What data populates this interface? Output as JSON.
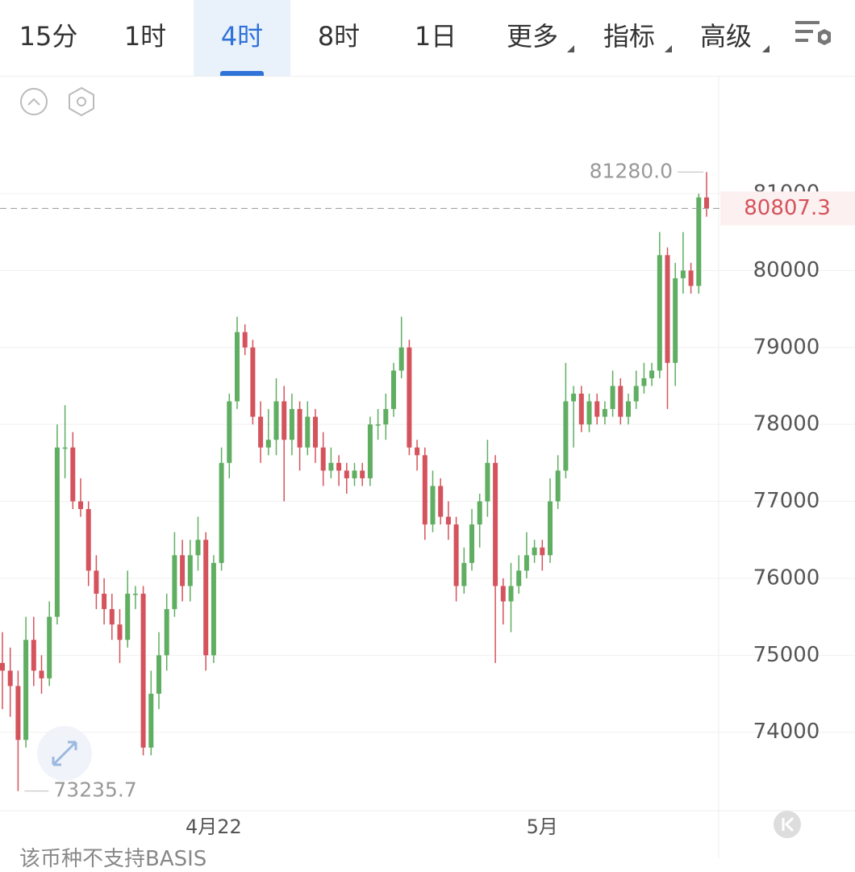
{
  "tabs": [
    "15分",
    "1时",
    "4时",
    "8时",
    "1日",
    "更多",
    "指标",
    "高级"
  ],
  "chart_data": {
    "type": "candlestick",
    "categories": [
      null,
      null,
      null,
      null,
      null,
      null,
      null,
      null,
      null,
      null,
      null,
      null,
      null,
      null,
      null,
      null,
      null,
      null,
      null,
      null,
      null,
      null,
      null,
      null,
      null,
      null,
      null,
      "4月22",
      null,
      null,
      null,
      null,
      null,
      null,
      null,
      null,
      null,
      null,
      null,
      null,
      null,
      null,
      null,
      null,
      null,
      null,
      null,
      null,
      null,
      null,
      null,
      null,
      null,
      null,
      null,
      null,
      null,
      null,
      null,
      null,
      null,
      null,
      null,
      null,
      null,
      null,
      null,
      null,
      null,
      "5月",
      null,
      null,
      null,
      null,
      null,
      null,
      null,
      null,
      null,
      null,
      null,
      null,
      null,
      null,
      null,
      null,
      null,
      null,
      null,
      null,
      null
    ],
    "ohlc": [
      [
        74900,
        75300,
        74300,
        74800
      ],
      [
        74800,
        75100,
        74200,
        74600
      ],
      [
        74600,
        74800,
        73235.7,
        73900
      ],
      [
        73900,
        75500,
        73800,
        75200
      ],
      [
        75200,
        75500,
        74600,
        74800
      ],
      [
        74800,
        75000,
        74500,
        74700
      ],
      [
        74700,
        75700,
        74600,
        75500
      ],
      [
        75500,
        78000,
        75400,
        77700
      ],
      [
        77700,
        78250,
        77300,
        77700
      ],
      [
        77700,
        77900,
        76900,
        77000
      ],
      [
        77000,
        77300,
        76800,
        76900
      ],
      [
        76900,
        77000,
        75900,
        76100
      ],
      [
        76100,
        76300,
        75600,
        75800
      ],
      [
        75800,
        76000,
        75400,
        75600
      ],
      [
        75600,
        75800,
        75200,
        75400
      ],
      [
        75400,
        75600,
        74900,
        75200
      ],
      [
        75200,
        76100,
        75100,
        75800
      ],
      [
        75800,
        75900,
        75600,
        75800
      ],
      [
        75800,
        75900,
        73700,
        73800
      ],
      [
        73800,
        74800,
        73700,
        74500
      ],
      [
        74500,
        75300,
        74300,
        75000
      ],
      [
        75000,
        75800,
        74800,
        75600
      ],
      [
        75600,
        76600,
        75500,
        76300
      ],
      [
        76300,
        76500,
        75700,
        75900
      ],
      [
        75900,
        76500,
        75700,
        76300
      ],
      [
        76300,
        76800,
        76100,
        76500
      ],
      [
        76500,
        76600,
        74800,
        75000
      ],
      [
        75000,
        76300,
        74900,
        76200
      ],
      [
        76200,
        77700,
        76100,
        77500
      ],
      [
        77500,
        78400,
        77300,
        78300
      ],
      [
        78300,
        79400,
        78200,
        79200
      ],
      [
        79200,
        79300,
        78900,
        79000
      ],
      [
        79000,
        79100,
        78000,
        78100
      ],
      [
        78100,
        78300,
        77500,
        77700
      ],
      [
        77700,
        78200,
        77600,
        77800
      ],
      [
        77800,
        78600,
        77600,
        78300
      ],
      [
        78300,
        78500,
        77000,
        77800
      ],
      [
        77800,
        78400,
        77600,
        78200
      ],
      [
        78200,
        78300,
        77400,
        77700
      ],
      [
        77700,
        78300,
        77600,
        78100
      ],
      [
        78100,
        78200,
        77500,
        77700
      ],
      [
        77700,
        77900,
        77200,
        77400
      ],
      [
        77400,
        77700,
        77300,
        77500
      ],
      [
        77500,
        77600,
        77200,
        77400
      ],
      [
        77400,
        77500,
        77100,
        77300
      ],
      [
        77300,
        77500,
        77200,
        77400
      ],
      [
        77400,
        77500,
        77200,
        77300
      ],
      [
        77300,
        78100,
        77200,
        78000
      ],
      [
        78000,
        78200,
        77800,
        78000
      ],
      [
        78000,
        78400,
        77800,
        78200
      ],
      [
        78200,
        78800,
        78100,
        78700
      ],
      [
        78700,
        79400,
        78600,
        79000
      ],
      [
        79000,
        79100,
        77600,
        77700
      ],
      [
        77700,
        77800,
        77400,
        77600
      ],
      [
        77600,
        77700,
        76500,
        76700
      ],
      [
        76700,
        77400,
        76600,
        77200
      ],
      [
        77200,
        77300,
        76700,
        76800
      ],
      [
        76800,
        77000,
        76500,
        76700
      ],
      [
        76700,
        76800,
        75700,
        75900
      ],
      [
        75900,
        76400,
        75800,
        76200
      ],
      [
        76200,
        76900,
        76100,
        76700
      ],
      [
        76700,
        77100,
        76400,
        77000
      ],
      [
        77000,
        77800,
        76800,
        77500
      ],
      [
        77500,
        77600,
        74900,
        75900
      ],
      [
        75900,
        76000,
        75400,
        75700
      ],
      [
        75700,
        76200,
        75300,
        75900
      ],
      [
        75900,
        76300,
        75800,
        76100
      ],
      [
        76100,
        76600,
        76000,
        76300
      ],
      [
        76300,
        76500,
        76200,
        76400
      ],
      [
        76400,
        76500,
        76100,
        76300
      ],
      [
        76300,
        77300,
        76200,
        77000
      ],
      [
        77000,
        77600,
        76900,
        77400
      ],
      [
        77400,
        78800,
        77300,
        78300
      ],
      [
        78300,
        78500,
        77700,
        78400
      ],
      [
        78400,
        78500,
        77900,
        78000
      ],
      [
        78000,
        78400,
        77900,
        78300
      ],
      [
        78300,
        78400,
        78000,
        78100
      ],
      [
        78100,
        78300,
        78000,
        78200
      ],
      [
        78200,
        78700,
        78100,
        78500
      ],
      [
        78500,
        78600,
        78000,
        78100
      ],
      [
        78100,
        78400,
        78000,
        78300
      ],
      [
        78300,
        78700,
        78200,
        78500
      ],
      [
        78500,
        78800,
        78400,
        78600
      ],
      [
        78600,
        78800,
        78500,
        78700
      ],
      [
        78700,
        80500,
        78600,
        80200
      ],
      [
        80200,
        80300,
        78200,
        78800
      ],
      [
        78800,
        80100,
        78500,
        79900
      ],
      [
        79900,
        80500,
        79700,
        80000
      ],
      [
        80000,
        80100,
        79700,
        79800
      ],
      [
        79800,
        81000,
        79700,
        80950
      ],
      [
        80950,
        81280,
        80700,
        80807.3
      ]
    ],
    "up_color": "#5fae61",
    "down_color": "#d4535c",
    "ylim": [
      72980,
      82520
    ],
    "yticks": [
      74000,
      75000,
      76000,
      77000,
      78000,
      79000,
      80000,
      81000
    ],
    "grid": true,
    "annotations": {
      "high": "81280.0",
      "low": "73235.7",
      "last": "80807.3"
    }
  },
  "footer": "该币种不支持BASIS"
}
